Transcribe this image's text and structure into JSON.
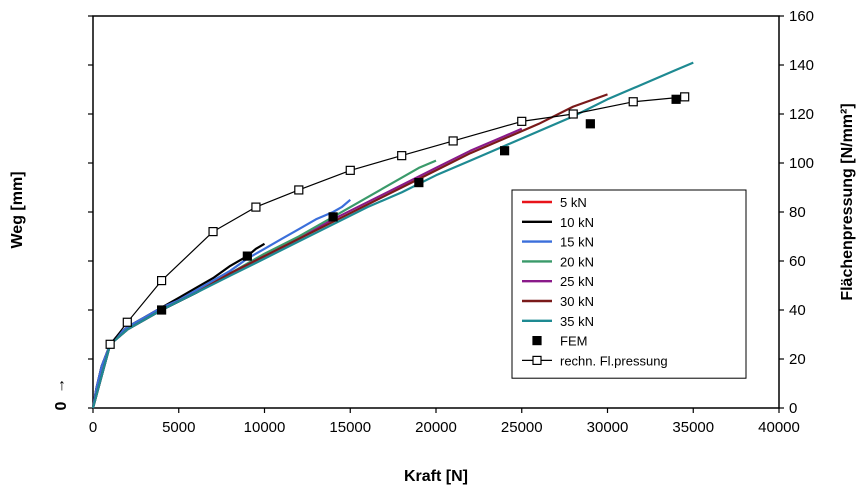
{
  "chart_data": {
    "type": "line",
    "xlabel": "Kraft [N]",
    "ylabel": "Weg [mm]",
    "y2label": "Flächenpressung [N/mm²]",
    "xlim": [
      0,
      40000
    ],
    "ylim": [
      0,
      160
    ],
    "y2lim": [
      0,
      160
    ],
    "x_ticks": [
      "0",
      "5000",
      "10000",
      "15000",
      "20000",
      "25000",
      "30000",
      "35000",
      "40000"
    ],
    "y2_ticks": [
      "0",
      "20",
      "40",
      "60",
      "80",
      "100",
      "120",
      "140",
      "160"
    ],
    "y_stub": {
      "zero_label": "0",
      "arrow": "↑"
    },
    "grid": false,
    "legend_position": "bottom-right",
    "series": [
      {
        "name": "5 kN",
        "color": "#e8141a",
        "axis": "right",
        "x": [
          0,
          200,
          500,
          1000,
          1500,
          2000,
          3000,
          4000,
          5000
        ],
        "y": [
          0,
          8,
          17,
          26,
          30,
          33,
          37,
          41,
          44
        ]
      },
      {
        "name": "10 kN",
        "color": "#000000",
        "axis": "right",
        "x": [
          0,
          200,
          500,
          1000,
          1500,
          2000,
          3000,
          4000,
          5000,
          6000,
          7000,
          8000,
          9000,
          9500,
          10000
        ],
        "y": [
          0,
          8,
          17,
          26,
          30,
          33,
          37,
          41,
          45,
          49,
          53,
          58,
          62,
          65,
          67
        ]
      },
      {
        "name": "15 kN",
        "color": "#3b6fdb",
        "axis": "right",
        "x": [
          0,
          200,
          500,
          1000,
          1500,
          2000,
          3000,
          4000,
          5000,
          6000,
          7000,
          8000,
          9000,
          10000,
          11000,
          12000,
          13000,
          14000,
          14500,
          15000
        ],
        "y": [
          0,
          8,
          17,
          26,
          30,
          33,
          37,
          41,
          44,
          48,
          52,
          56,
          61,
          65,
          69,
          73,
          77,
          80,
          82,
          85
        ]
      },
      {
        "name": "20 kN",
        "color": "#3a9a6a",
        "axis": "right",
        "x": [
          0,
          1000,
          2000,
          4000,
          6000,
          8000,
          10000,
          12000,
          14000,
          16000,
          18000,
          19000,
          20000
        ],
        "y": [
          0,
          26,
          32,
          40,
          47,
          55,
          63,
          70,
          78,
          86,
          94,
          98,
          101
        ]
      },
      {
        "name": "25 kN",
        "color": "#8a1a8a",
        "axis": "right",
        "x": [
          0,
          1000,
          2000,
          4000,
          6000,
          8000,
          10000,
          12000,
          14000,
          16000,
          18000,
          20000,
          22000,
          24000,
          25000
        ],
        "y": [
          0,
          26,
          32,
          40,
          47,
          55,
          62,
          69,
          77,
          84,
          91,
          98,
          105,
          111,
          114
        ]
      },
      {
        "name": "30 kN",
        "color": "#7a1a1a",
        "axis": "right",
        "x": [
          0,
          1000,
          2000,
          4000,
          6000,
          8000,
          10000,
          12000,
          14000,
          16000,
          18000,
          20000,
          22000,
          24000,
          26000,
          28000,
          30000
        ],
        "y": [
          0,
          26,
          32,
          40,
          47,
          55,
          62,
          69,
          76,
          83,
          90,
          97,
          104,
          110,
          116,
          123,
          128
        ]
      },
      {
        "name": "35 kN",
        "color": "#1e8a92",
        "axis": "right",
        "x": [
          0,
          1000,
          2000,
          4000,
          6000,
          8000,
          10000,
          12000,
          14000,
          16000,
          18000,
          20000,
          22000,
          24000,
          26000,
          28000,
          30000,
          32000,
          34000,
          35000
        ],
        "y": [
          0,
          26,
          32,
          40,
          47,
          54,
          61,
          68,
          75,
          82,
          88,
          95,
          101,
          107,
          113,
          119,
          126,
          132,
          138,
          141
        ]
      },
      {
        "name": "FEM",
        "color": "#000000",
        "axis": "right",
        "marker": "filled-square",
        "line": false,
        "x": [
          4000,
          9000,
          14000,
          19000,
          24000,
          29000,
          34000
        ],
        "y": [
          40,
          62,
          78,
          92,
          105,
          116,
          126
        ]
      },
      {
        "name": "rechn. Fl.pressung",
        "color": "#000000",
        "axis": "right",
        "marker": "open-square",
        "line": true,
        "x": [
          1000,
          2000,
          4000,
          7000,
          9500,
          12000,
          15000,
          18000,
          21000,
          25000,
          28000,
          31500,
          34500
        ],
        "y": [
          26,
          35,
          52,
          72,
          82,
          89,
          97,
          103,
          109,
          117,
          120,
          125,
          127
        ]
      }
    ]
  }
}
